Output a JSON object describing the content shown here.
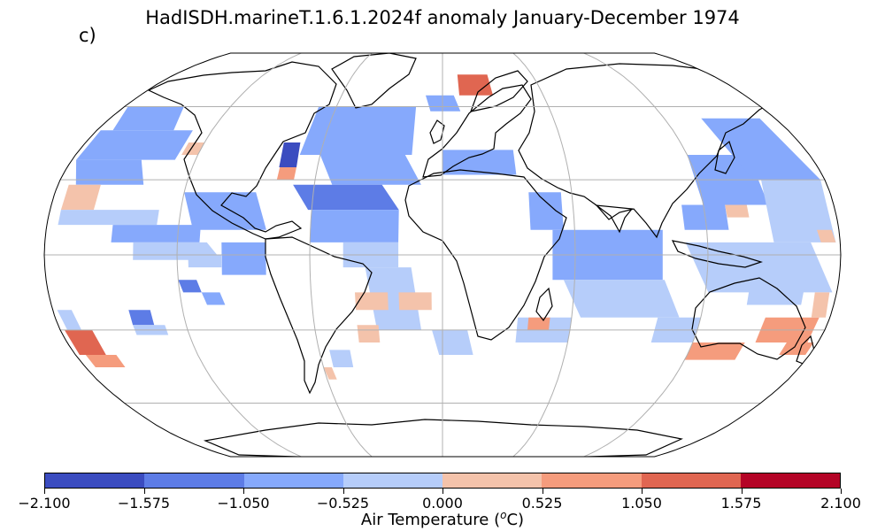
{
  "title": "HadISDH.marineT.1.6.1.2024f anomaly January-December 1974",
  "panel_label": "c)",
  "colorbar": {
    "label_prefix": "Air Temperature (",
    "label_unit_sup": "o",
    "label_suffix": "C)",
    "ticks": [
      "−2.100",
      "−1.575",
      "−1.050",
      "−0.525",
      "0.000",
      "0.525",
      "1.050",
      "1.575",
      "2.100"
    ],
    "colors": [
      "#3b4cc0",
      "#5d7ce6",
      "#86a9fc",
      "#b6cdfa",
      "#f4c3ab",
      "#f59c7d",
      "#e06651",
      "#b40426"
    ]
  },
  "chart_data": {
    "type": "heatmap",
    "projection": "Robinson",
    "variable": "Air Temperature anomaly",
    "unit": "°C",
    "period": "January-December 1974",
    "levels": [
      -2.1,
      -1.575,
      -1.05,
      -0.525,
      0.0,
      0.525,
      1.05,
      1.575,
      2.1
    ],
    "grid": true,
    "graticule_lon": [
      -180,
      -120,
      -60,
      0,
      60,
      120,
      180
    ],
    "graticule_lat": [
      -60,
      -30,
      0,
      30,
      60
    ],
    "cells": [
      {
        "lon": [
          -178,
          -140
        ],
        "lat": [
          50,
          60
        ],
        "v": -0.8
      },
      {
        "lon": [
          -178,
          -130
        ],
        "lat": [
          38,
          50
        ],
        "v": -0.6
      },
      {
        "lon": [
          -178,
          -140
        ],
        "lat": [
          28,
          38
        ],
        "v": -0.6
      },
      {
        "lon": [
          -175,
          -160
        ],
        "lat": [
          18,
          28
        ],
        "v": 0.4
      },
      {
        "lon": [
          -175,
          -130
        ],
        "lat": [
          12,
          18
        ],
        "v": -0.4
      },
      {
        "lon": [
          -150,
          -110
        ],
        "lat": [
          5,
          12
        ],
        "v": -0.6
      },
      {
        "lon": [
          -140,
          -100
        ],
        "lat": [
          -2,
          5
        ],
        "v": -0.4
      },
      {
        "lon": [
          -128,
          -120
        ],
        "lat": [
          40,
          45
        ],
        "v": 0.4
      },
      {
        "lon": [
          -120,
          -80
        ],
        "lat": [
          10,
          25
        ],
        "v": -0.9
      },
      {
        "lon": [
          -100,
          -80
        ],
        "lat": [
          -8,
          5
        ],
        "v": -0.9
      },
      {
        "lon": [
          -115,
          -100
        ],
        "lat": [
          -5,
          0
        ],
        "v": -0.4
      },
      {
        "lon": [
          -120,
          -110
        ],
        "lat": [
          -15,
          -10
        ],
        "v": -1.2
      },
      {
        "lon": [
          -110,
          -100
        ],
        "lat": [
          -20,
          -15
        ],
        "v": -0.9
      },
      {
        "lon": [
          -178,
          -170
        ],
        "lat": [
          -30,
          -22
        ],
        "v": -0.5
      },
      {
        "lon": [
          -178,
          -165
        ],
        "lat": [
          -40,
          -30
        ],
        "v": 1.2
      },
      {
        "lon": [
          -175,
          -160
        ],
        "lat": [
          -45,
          -40
        ],
        "v": 0.7
      },
      {
        "lon": [
          -145,
          -135
        ],
        "lat": [
          -28,
          -22
        ],
        "v": -1.1
      },
      {
        "lon": [
          -145,
          -130
        ],
        "lat": [
          -32,
          -28
        ],
        "v": -0.5
      },
      {
        "lon": [
          -80,
          -70
        ],
        "lat": [
          35,
          45
        ],
        "v": -1.8
      },
      {
        "lon": [
          -78,
          -70
        ],
        "lat": [
          30,
          35
        ],
        "v": 0.6
      },
      {
        "lon": [
          -70,
          -15
        ],
        "lat": [
          40,
          60
        ],
        "v": -1.0
      },
      {
        "lon": [
          -60,
          -10
        ],
        "lat": [
          28,
          40
        ],
        "v": -0.7
      },
      {
        "lon": [
          -70,
          -20
        ],
        "lat": [
          18,
          28
        ],
        "v": -1.1
      },
      {
        "lon": [
          -60,
          -20
        ],
        "lat": [
          5,
          18
        ],
        "v": -0.9
      },
      {
        "lon": [
          -45,
          -20
        ],
        "lat": [
          -5,
          5
        ],
        "v": -0.5
      },
      {
        "lon": [
          -35,
          -10
        ],
        "lat": [
          -30,
          -5
        ],
        "v": -0.4
      },
      {
        "lon": [
          -40,
          -25
        ],
        "lat": [
          -22,
          -15
        ],
        "v": 0.5
      },
      {
        "lon": [
          -20,
          -5
        ],
        "lat": [
          -22,
          -15
        ],
        "v": 0.5
      },
      {
        "lon": [
          -40,
          -30
        ],
        "lat": [
          -35,
          -28
        ],
        "v": 0.5
      },
      {
        "lon": [
          -55,
          -45
        ],
        "lat": [
          -45,
          -38
        ],
        "v": -0.5
      },
      {
        "lon": [
          -60,
          -55
        ],
        "lat": [
          -50,
          -45
        ],
        "v": 0.5
      },
      {
        "lon": [
          -5,
          15
        ],
        "lat": [
          -40,
          -30
        ],
        "v": -0.5
      },
      {
        "lon": [
          10,
          30
        ],
        "lat": [
          65,
          75
        ],
        "v": 1.1
      },
      {
        "lon": [
          -10,
          10
        ],
        "lat": [
          58,
          65
        ],
        "v": -0.6
      },
      {
        "lon": [
          0,
          35
        ],
        "lat": [
          32,
          42
        ],
        "v": -1.0
      },
      {
        "lon": [
          40,
          55
        ],
        "lat": [
          10,
          25
        ],
        "v": -0.6
      },
      {
        "lon": [
          50,
          100
        ],
        "lat": [
          -10,
          10
        ],
        "v": -0.9
      },
      {
        "lon": [
          55,
          110
        ],
        "lat": [
          -25,
          -10
        ],
        "v": -0.5
      },
      {
        "lon": [
          35,
          60
        ],
        "lat": [
          -35,
          -25
        ],
        "v": -0.5
      },
      {
        "lon": [
          40,
          50
        ],
        "lat": [
          -30,
          -25
        ],
        "v": 0.6
      },
      {
        "lon": [
          110,
          130
        ],
        "lat": [
          10,
          20
        ],
        "v": -0.6
      },
      {
        "lon": [
          120,
          150
        ],
        "lat": [
          20,
          40
        ],
        "v": -0.9
      },
      {
        "lon": [
          140,
          178
        ],
        "lat": [
          30,
          55
        ],
        "v": -0.7
      },
      {
        "lon": [
          150,
          178
        ],
        "lat": [
          5,
          30
        ],
        "v": -0.4
      },
      {
        "lon": [
          130,
          140
        ],
        "lat": [
          15,
          20
        ],
        "v": 0.4
      },
      {
        "lon": [
          170,
          178
        ],
        "lat": [
          5,
          10
        ],
        "v": 0.5
      },
      {
        "lon": [
          110,
          178
        ],
        "lat": [
          -15,
          5
        ],
        "v": -0.5
      },
      {
        "lon": [
          140,
          165
        ],
        "lat": [
          -20,
          -10
        ],
        "v": -0.4
      },
      {
        "lon": [
          150,
          175
        ],
        "lat": [
          -35,
          -25
        ],
        "v": 0.8
      },
      {
        "lon": [
          100,
          120
        ],
        "lat": [
          -35,
          -25
        ],
        "v": -0.5
      },
      {
        "lon": [
          120,
          145
        ],
        "lat": [
          -42,
          -35
        ],
        "v": 1.0
      },
      {
        "lon": [
          165,
          178
        ],
        "lat": [
          -40,
          -35
        ],
        "v": 0.7
      },
      {
        "lon": [
          170,
          178
        ],
        "lat": [
          -25,
          -15
        ],
        "v": 0.5
      }
    ]
  }
}
